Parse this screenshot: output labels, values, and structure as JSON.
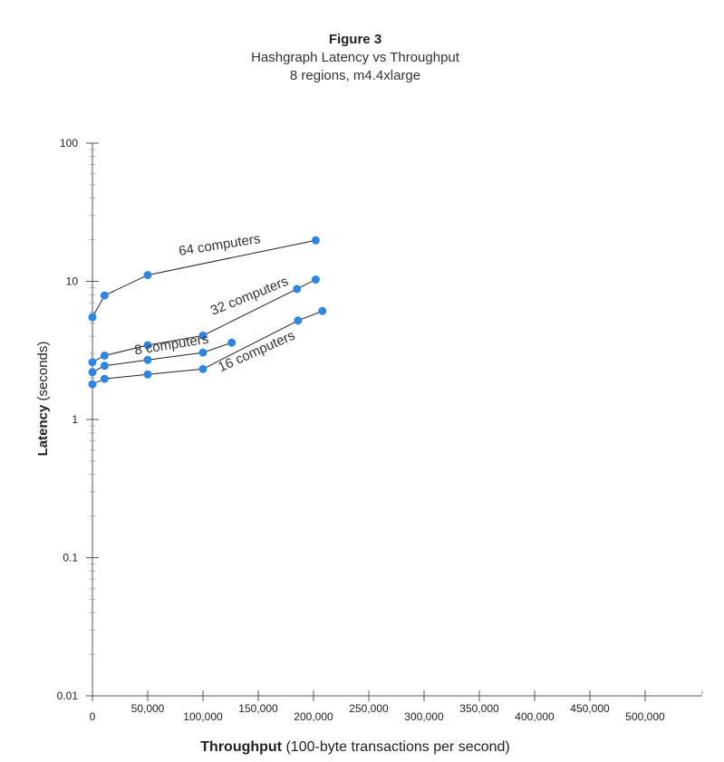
{
  "chart_data": {
    "type": "line",
    "title": "Figure 3",
    "subtitle": [
      "Hashgraph Latency vs Throughput",
      "8 regions, m4.4xlarge"
    ],
    "xlabel_bold": "Throughput",
    "xlabel_rest": " (100-byte transactions per second)",
    "ylabel_bold": "Latency",
    "ylabel_rest": " (seconds)",
    "xlim": [
      0,
      550000
    ],
    "ylim": [
      0.01,
      100
    ],
    "yscale": "log",
    "x_ticks": [
      {
        "value": 0,
        "label": "0"
      },
      {
        "value": 50000,
        "label": "50,000"
      },
      {
        "value": 100000,
        "label": "100,000"
      },
      {
        "value": 150000,
        "label": "150,000"
      },
      {
        "value": 200000,
        "label": "200,000"
      },
      {
        "value": 250000,
        "label": "250,000"
      },
      {
        "value": 300000,
        "label": "300,000"
      },
      {
        "value": 350000,
        "label": "350,000"
      },
      {
        "value": 400000,
        "label": "400,000"
      },
      {
        "value": 450000,
        "label": "450,000"
      },
      {
        "value": 500000,
        "label": "500,000"
      }
    ],
    "y_ticks": [
      {
        "value": 100,
        "label": "100"
      },
      {
        "value": 10,
        "label": "10"
      },
      {
        "value": 1,
        "label": "1"
      },
      {
        "value": 0.1,
        "label": "0.1"
      },
      {
        "value": 0.01,
        "label": "0.01"
      }
    ],
    "grid": false,
    "point_color": "#2f86e0",
    "line_color": "#222222",
    "series": [
      {
        "name": "64 computers",
        "x": [
          0,
          11000,
          50000,
          202000
        ],
        "y": [
          5.5,
          7.9,
          11.1,
          19.8
        ]
      },
      {
        "name": "32 computers",
        "x": [
          0,
          11000,
          50000,
          100000,
          185000,
          202000
        ],
        "y": [
          2.6,
          2.9,
          3.45,
          4.05,
          8.8,
          10.3
        ]
      },
      {
        "name": "8 computers",
        "x": [
          0,
          11000,
          50000,
          100000,
          126000
        ],
        "y": [
          2.2,
          2.45,
          2.7,
          3.05,
          3.6
        ]
      },
      {
        "name": "16 computers",
        "x": [
          0,
          11000,
          50000,
          100000,
          186000,
          208000
        ],
        "y": [
          1.8,
          1.97,
          2.12,
          2.32,
          5.2,
          6.1
        ]
      }
    ]
  }
}
